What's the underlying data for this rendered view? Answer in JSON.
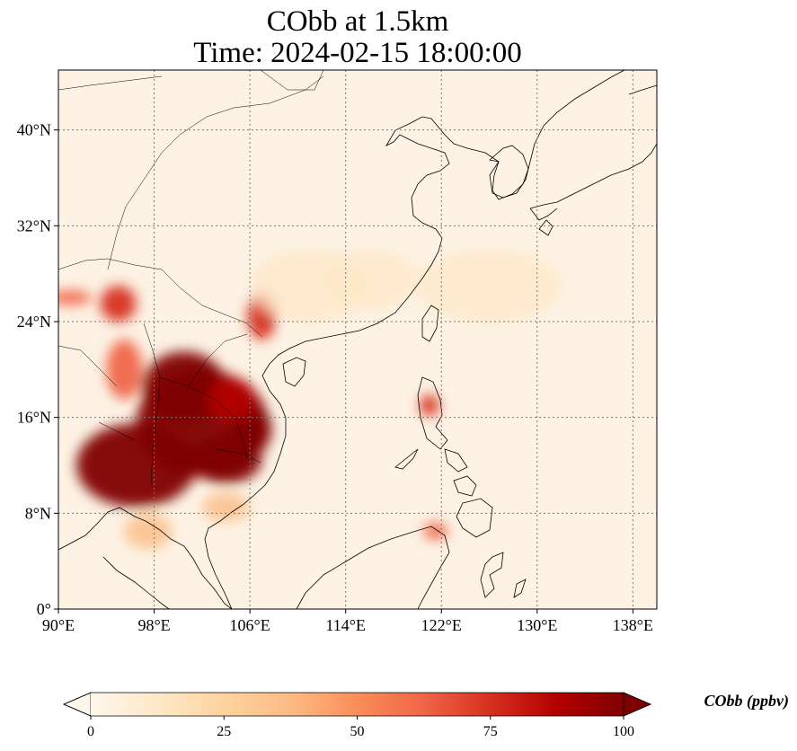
{
  "title_line1": "CObb at 1.5km",
  "title_line2": "Time: 2024-02-15 18:00:00",
  "map": {
    "lon_range": [
      90,
      140
    ],
    "lat_range": [
      0,
      45
    ],
    "lon_ticks": [
      {
        "value": 90,
        "label": "90°E"
      },
      {
        "value": 98,
        "label": "98°E"
      },
      {
        "value": 106,
        "label": "106°E"
      },
      {
        "value": 114,
        "label": "114°E"
      },
      {
        "value": 122,
        "label": "122°E"
      },
      {
        "value": 130,
        "label": "130°E"
      },
      {
        "value": 138,
        "label": "138°E"
      }
    ],
    "lat_ticks": [
      {
        "value": 0,
        "label": "0°"
      },
      {
        "value": 8,
        "label": "8°N"
      },
      {
        "value": 16,
        "label": "16°N"
      },
      {
        "value": 24,
        "label": "24°N"
      },
      {
        "value": 32,
        "label": "32°N"
      },
      {
        "value": 40,
        "label": "40°N"
      }
    ],
    "gridlines": "dotted",
    "projection": "PlateCarree"
  },
  "colorbar": {
    "label": "CObb (ppbv)",
    "colormap": "OrRd",
    "min": 0,
    "max": 100,
    "extend": "both",
    "ticks": [
      {
        "value": 0,
        "label": "0"
      },
      {
        "value": 25,
        "label": "25"
      },
      {
        "value": 50,
        "label": "50"
      },
      {
        "value": 75,
        "label": "75"
      },
      {
        "value": 100,
        "label": "100"
      }
    ],
    "colors": [
      "#fff7ec",
      "#fee8c8",
      "#fdd49e",
      "#fdbb84",
      "#fc8d59",
      "#ef6548",
      "#d7301f",
      "#b30000",
      "#7f0000"
    ]
  },
  "plumes": [
    {
      "lon": 102.0,
      "lat": 15.5,
      "value": 100,
      "rx": 5.5,
      "ry": 4.5
    },
    {
      "lon": 96.5,
      "lat": 12.0,
      "value": 100,
      "rx": 5.0,
      "ry": 3.5
    },
    {
      "lon": 100.5,
      "lat": 18.5,
      "value": 100,
      "rx": 3.5,
      "ry": 3.0
    },
    {
      "lon": 104.0,
      "lat": 12.5,
      "value": 100,
      "rx": 3.0,
      "ry": 2.0
    },
    {
      "lon": 106.0,
      "lat": 15.0,
      "value": 100,
      "rx": 1.8,
      "ry": 2.2
    },
    {
      "lon": 104.5,
      "lat": 17.5,
      "value": 90,
      "rx": 2.0,
      "ry": 1.8
    },
    {
      "lon": 107.0,
      "lat": 24.5,
      "value": 80,
      "rx": 1.2,
      "ry": 2.0
    },
    {
      "lon": 95.0,
      "lat": 25.5,
      "value": 70,
      "rx": 1.5,
      "ry": 1.5
    },
    {
      "lon": 91.0,
      "lat": 26.0,
      "value": 65,
      "rx": 1.8,
      "ry": 0.6
    },
    {
      "lon": 95.5,
      "lat": 20.0,
      "value": 60,
      "rx": 1.5,
      "ry": 2.5
    },
    {
      "lon": 121.0,
      "lat": 17.0,
      "value": 70,
      "rx": 0.8,
      "ry": 0.9
    },
    {
      "lon": 121.5,
      "lat": 6.5,
      "value": 60,
      "rx": 1.0,
      "ry": 0.7
    },
    {
      "lon": 97.5,
      "lat": 6.5,
      "value": 40,
      "rx": 2.0,
      "ry": 1.5
    },
    {
      "lon": 104.0,
      "lat": 8.5,
      "value": 35,
      "rx": 2.0,
      "ry": 1.2
    },
    {
      "lon": 111.0,
      "lat": 27.0,
      "value": 15,
      "rx": 5.0,
      "ry": 3.0
    },
    {
      "lon": 116.0,
      "lat": 27.5,
      "value": 12,
      "rx": 4.0,
      "ry": 2.5
    },
    {
      "lon": 126.0,
      "lat": 27.0,
      "value": 8,
      "rx": 6.0,
      "ry": 3.0
    }
  ]
}
